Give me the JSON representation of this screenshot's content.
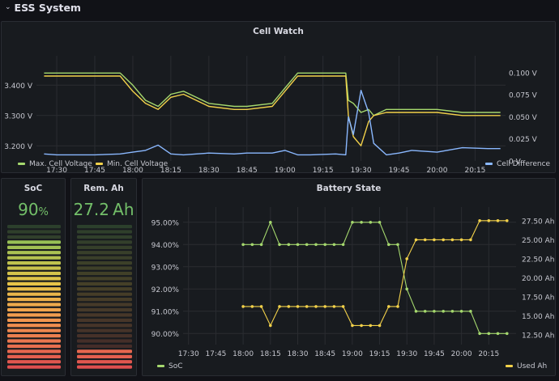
{
  "row": {
    "title": "ESS System",
    "chevron_icon": "chevron-down-icon"
  },
  "cell_watch": {
    "title": "Cell Watch",
    "left_ticks": [
      "3.400 V",
      "3.300 V",
      "3.200 V"
    ],
    "right_ticks": [
      "0.100 V",
      "0.075 V",
      "0.050 V",
      "0.025 V",
      "0 V"
    ],
    "x_ticks": [
      "17:30",
      "17:45",
      "18:00",
      "18:15",
      "18:30",
      "18:45",
      "19:00",
      "19:15",
      "19:30",
      "19:45",
      "20:00",
      "20:15"
    ],
    "legend": [
      {
        "label": "Max. Cell Voltage",
        "color": "#a5d86e"
      },
      {
        "label": "Min. Cell Voltage",
        "color": "#f2d14a"
      },
      {
        "label": "Cell Difference",
        "color": "#8ab8ff"
      }
    ]
  },
  "soc": {
    "title": "SoC",
    "value": "90",
    "unit": "%",
    "level": 0.9
  },
  "rem_ah": {
    "title": "Rem. Ah",
    "value": "27.2",
    "unit": "Ah",
    "level": 0.12
  },
  "battery_state": {
    "title": "Battery State",
    "left_ticks": [
      "95.00%",
      "94.00%",
      "93.00%",
      "92.00%",
      "91.00%",
      "90.00%"
    ],
    "right_ticks": [
      "27.50 Ah",
      "25.00 Ah",
      "22.50 Ah",
      "20.00 Ah",
      "17.50 Ah",
      "15.00 Ah",
      "12.50 Ah"
    ],
    "x_ticks": [
      "17:30",
      "17:45",
      "18:00",
      "18:15",
      "18:30",
      "18:45",
      "19:00",
      "19:15",
      "19:30",
      "19:45",
      "20:00",
      "20:15"
    ],
    "legend": [
      {
        "label": "SoC",
        "color": "#a5d86e"
      },
      {
        "label": "Used Ah",
        "color": "#f2d14a"
      }
    ]
  },
  "chart_data": [
    {
      "type": "line",
      "title": "Cell Watch",
      "ylim": [
        3.15,
        3.47
      ],
      "y2lim": [
        0,
        0.11
      ],
      "x": [
        "17:25",
        "17:30",
        "17:45",
        "17:55",
        "18:00",
        "18:05",
        "18:10",
        "18:15",
        "18:20",
        "18:25",
        "18:30",
        "18:40",
        "18:45",
        "18:55",
        "19:00",
        "19:05",
        "19:10",
        "19:20",
        "19:24",
        "19:25",
        "19:27",
        "19:30",
        "19:33",
        "19:35",
        "19:40",
        "19:45",
        "19:50",
        "20:00",
        "20:10",
        "20:20",
        "20:25"
      ],
      "series": [
        {
          "name": "Max. Cell Voltage",
          "axis": "left",
          "values": [
            3.44,
            3.44,
            3.44,
            3.44,
            3.4,
            3.35,
            3.33,
            3.37,
            3.38,
            3.36,
            3.34,
            3.33,
            3.33,
            3.34,
            3.39,
            3.44,
            3.44,
            3.44,
            3.44,
            3.35,
            3.34,
            3.31,
            3.32,
            3.3,
            3.32,
            3.32,
            3.32,
            3.32,
            3.31,
            3.31,
            3.31
          ]
        },
        {
          "name": "Min. Cell Voltage",
          "axis": "left",
          "values": [
            3.43,
            3.43,
            3.43,
            3.43,
            3.38,
            3.34,
            3.32,
            3.36,
            3.37,
            3.35,
            3.33,
            3.32,
            3.32,
            3.33,
            3.38,
            3.43,
            3.43,
            3.43,
            3.43,
            3.3,
            3.23,
            3.2,
            3.28,
            3.3,
            3.31,
            3.31,
            3.31,
            3.31,
            3.3,
            3.3,
            3.3
          ]
        },
        {
          "name": "Cell Difference",
          "axis": "right",
          "values": [
            0.008,
            0.007,
            0.007,
            0.008,
            0.01,
            0.012,
            0.018,
            0.008,
            0.007,
            0.008,
            0.009,
            0.008,
            0.009,
            0.009,
            0.012,
            0.007,
            0.007,
            0.008,
            0.007,
            0.05,
            0.03,
            0.08,
            0.055,
            0.02,
            0.007,
            0.009,
            0.012,
            0.01,
            0.015,
            0.014,
            0.014
          ]
        }
      ]
    },
    {
      "type": "line",
      "title": "Battery State",
      "ylim": [
        89.5,
        95.5
      ],
      "y2lim": [
        11.25,
        28.75
      ],
      "x": [
        "18:00",
        "18:05",
        "18:10",
        "18:15",
        "18:20",
        "18:25",
        "18:30",
        "18:35",
        "18:40",
        "18:45",
        "18:50",
        "18:55",
        "19:00",
        "19:05",
        "19:10",
        "19:15",
        "19:20",
        "19:25",
        "19:30",
        "19:35",
        "19:40",
        "19:45",
        "19:50",
        "19:55",
        "20:00",
        "20:05",
        "20:10",
        "20:15",
        "20:20",
        "20:25"
      ],
      "series": [
        {
          "name": "SoC",
          "axis": "left",
          "values": [
            94,
            94,
            94,
            95,
            94,
            94,
            94,
            94,
            94,
            94,
            94,
            94,
            95,
            95,
            95,
            95,
            94,
            94,
            92,
            91,
            91,
            91,
            91,
            91,
            91,
            91,
            90,
            90,
            90,
            90
          ]
        },
        {
          "name": "Used Ah",
          "axis": "right",
          "values": [
            16.25,
            16.25,
            16.25,
            13.75,
            16.25,
            16.25,
            16.25,
            16.25,
            16.25,
            16.25,
            16.25,
            16.25,
            13.75,
            13.75,
            13.75,
            13.75,
            16.25,
            16.25,
            22.5,
            25,
            25,
            25,
            25,
            25,
            25,
            25,
            27.5,
            27.5,
            27.5,
            27.5
          ]
        }
      ]
    }
  ]
}
